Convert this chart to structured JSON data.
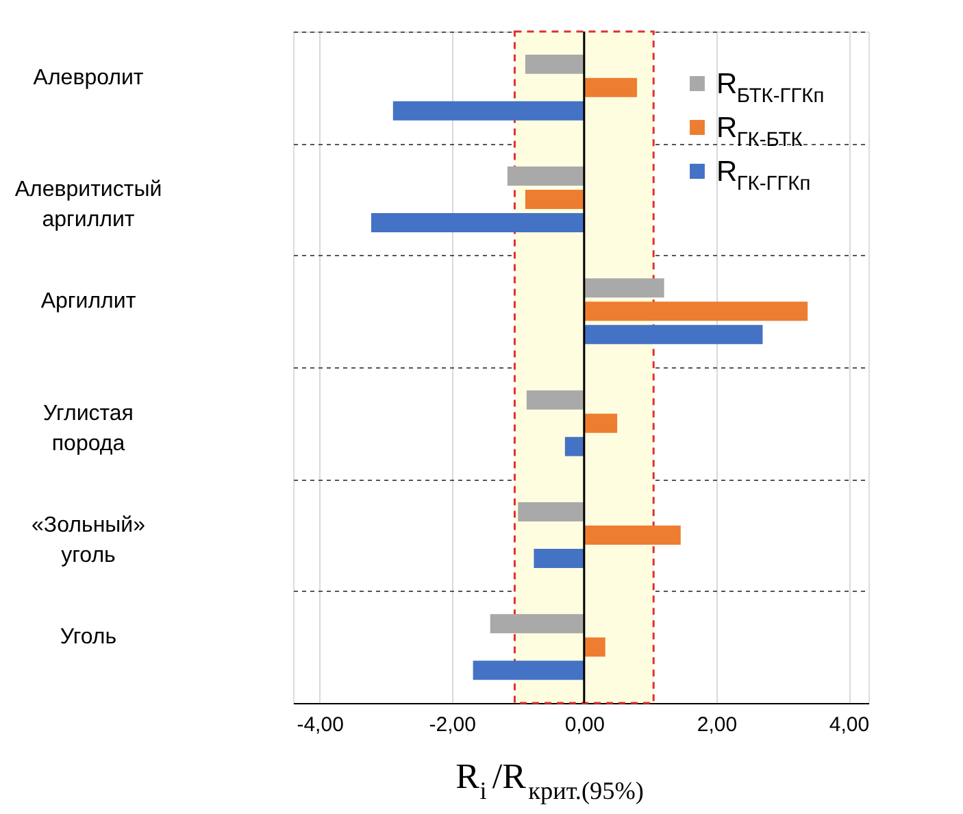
{
  "chart_data": {
    "type": "bar",
    "orientation": "horizontal",
    "xlabel": "R$_{i}$/R$_{крит.(95%)}$",
    "categories": [
      "Алевролит",
      "Алевритистый\nаргиллит",
      "Аргиллит",
      "Углистая\nпорода",
      "«Зольный»\nуголь",
      "Уголь"
    ],
    "series": [
      {
        "name": "R$_{БТК-ГГКп}$",
        "color": "#a9a9a9",
        "values": [
          -0.89,
          -1.16,
          1.21,
          -0.87,
          -1.0,
          -1.42
        ]
      },
      {
        "name": "R$_{ГК-БТК}$",
        "color": "#ed7d31",
        "values": [
          0.8,
          -0.89,
          3.38,
          0.5,
          1.46,
          0.32
        ]
      },
      {
        "name": "R$_{ГК-ГГКп}$",
        "color": "#4472c4",
        "values": [
          -2.89,
          -3.22,
          2.7,
          -0.29,
          -0.76,
          -1.68
        ]
      }
    ],
    "xlim": [
      -4.4,
      4.3
    ],
    "xticks": [
      {
        "value": -4,
        "label": "-4,00"
      },
      {
        "value": -2,
        "label": "-2,00"
      },
      {
        "value": 0,
        "label": "0,00"
      },
      {
        "value": 2,
        "label": "2,00"
      },
      {
        "value": 4,
        "label": "4,00"
      }
    ],
    "ref_lines": [
      {
        "axis": "x",
        "value": 0,
        "color": "#000000"
      }
    ],
    "bands": [
      {
        "axis": "x",
        "from": -1.05,
        "to": 1.05,
        "color": "#fffde0"
      }
    ],
    "grid": true,
    "legend": "top right"
  }
}
